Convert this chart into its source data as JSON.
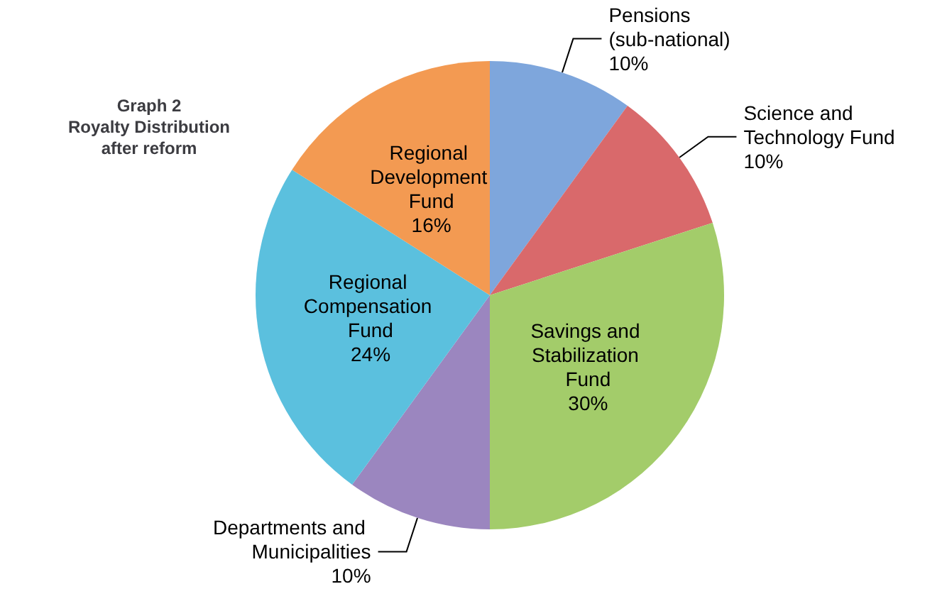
{
  "chart_data": {
    "type": "pie",
    "title": "Graph 2\nRoyalty Distribution\nafter reform",
    "categories": [
      "Pensions (sub-national)",
      "Science and Technology Fund",
      "Savings and Stabilization Fund",
      "Departments and Municipalities",
      "Regional Compensation Fund",
      "Regional Development Fund"
    ],
    "values": [
      10,
      10,
      30,
      10,
      24,
      16
    ],
    "colors": [
      "#7ea6dc",
      "#d9696b",
      "#a3cc6a",
      "#9b86bf",
      "#5bc0de",
      "#f39a52"
    ],
    "value_labels": [
      "10%",
      "10%",
      "30%",
      "10%",
      "24%",
      "16%"
    ],
    "legend": false
  }
}
